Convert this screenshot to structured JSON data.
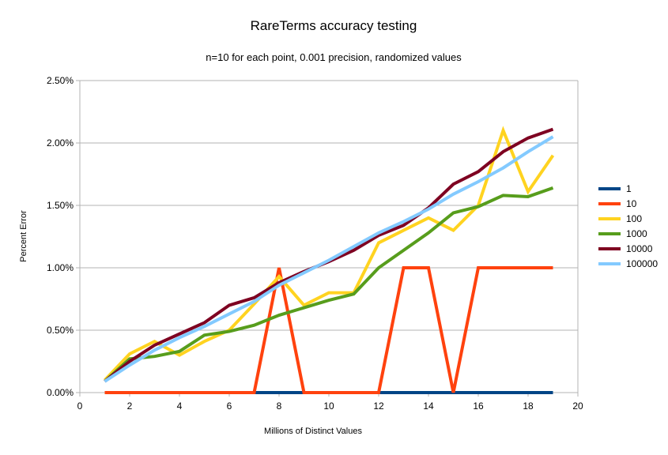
{
  "chart_data": {
    "type": "line",
    "title": "RareTerms accuracy testing",
    "subtitle": "n=10 for each point, 0.001 precision, randomized values",
    "xlabel": "Millions of Distinct Values",
    "ylabel": "Percent Error",
    "xlim": [
      0,
      20
    ],
    "ylim": [
      0,
      2.5
    ],
    "x_ticks": [
      "0",
      "2",
      "4",
      "6",
      "8",
      "10",
      "12",
      "14",
      "16",
      "18",
      "20"
    ],
    "y_ticks": [
      "0.00%",
      "0.50%",
      "1.00%",
      "1.50%",
      "2.00%",
      "2.50%"
    ],
    "grid": "horizontal",
    "legend": "right",
    "x": [
      1,
      2,
      3,
      4,
      5,
      6,
      7,
      8,
      9,
      10,
      11,
      12,
      13,
      14,
      15,
      16,
      17,
      18,
      19
    ],
    "series": [
      {
        "name": "1",
        "color": "#004586",
        "values": [
          0,
          0,
          0,
          0,
          0,
          0,
          0,
          0,
          0,
          0,
          0,
          0,
          0,
          0,
          0,
          0,
          0,
          0,
          0
        ]
      },
      {
        "name": "10",
        "color": "#ff420e",
        "values": [
          0,
          0,
          0,
          0,
          0,
          0,
          0,
          1.0,
          0,
          0,
          0,
          0,
          1.0,
          1.0,
          0,
          1.0,
          1.0,
          1.0,
          1.0
        ]
      },
      {
        "name": "100",
        "color": "#ffd320",
        "values": [
          0.1,
          0.31,
          0.41,
          0.3,
          0.41,
          0.5,
          0.71,
          0.93,
          0.7,
          0.8,
          0.8,
          1.2,
          1.3,
          1.4,
          1.3,
          1.5,
          2.1,
          1.61,
          1.9
        ]
      },
      {
        "name": "1000",
        "color": "#579d1c",
        "values": [
          0.09,
          0.27,
          0.29,
          0.33,
          0.46,
          0.49,
          0.54,
          0.62,
          0.68,
          0.74,
          0.79,
          1.0,
          1.14,
          1.28,
          1.44,
          1.49,
          1.58,
          1.57,
          1.64
        ]
      },
      {
        "name": "10000",
        "color": "#7e0021",
        "values": [
          0.09,
          0.25,
          0.38,
          0.47,
          0.56,
          0.7,
          0.76,
          0.88,
          0.97,
          1.05,
          1.14,
          1.26,
          1.34,
          1.48,
          1.67,
          1.77,
          1.93,
          2.04,
          2.11
        ]
      },
      {
        "name": "100000",
        "color": "#83caff",
        "values": [
          0.09,
          0.22,
          0.34,
          0.44,
          0.53,
          0.63,
          0.73,
          0.86,
          0.96,
          1.06,
          1.17,
          1.28,
          1.37,
          1.47,
          1.59,
          1.69,
          1.8,
          1.93,
          2.05
        ]
      }
    ]
  }
}
